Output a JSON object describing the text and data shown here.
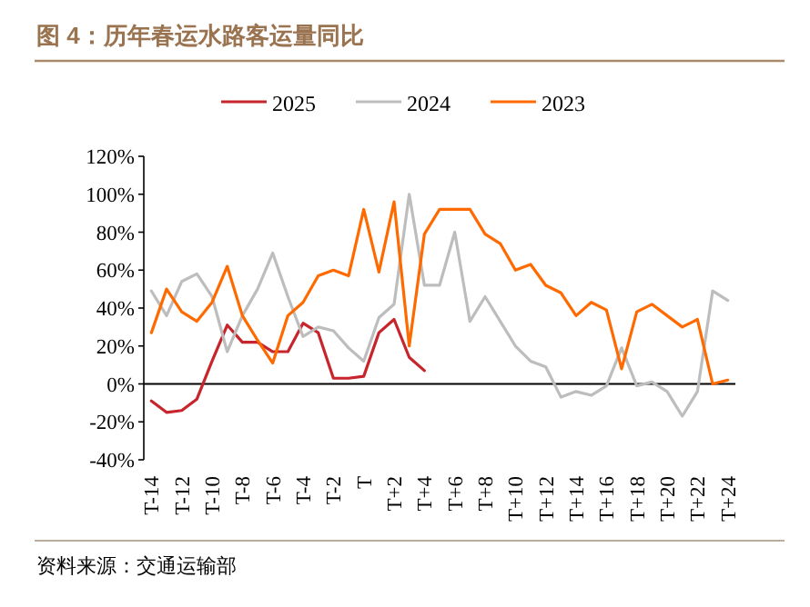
{
  "chart_data": {
    "type": "line",
    "title": "图 4：历年春运水路客运量同比",
    "categories": [
      "T-14",
      null,
      "T-12",
      null,
      "T-10",
      null,
      "T-8",
      null,
      "T-6",
      null,
      "T-4",
      null,
      "T-2",
      null,
      "T",
      null,
      "T+2",
      null,
      "T+4",
      null,
      "T+6",
      null,
      "T+8",
      null,
      "T+10",
      null,
      "T+12",
      null,
      "T+14",
      null,
      "T+16",
      null,
      "T+18",
      null,
      "T+20",
      null,
      "T+22",
      null,
      "T+24"
    ],
    "series": [
      {
        "name": "2025",
        "color": "#c8242c",
        "values": [
          -9,
          -15,
          -14,
          -8,
          12,
          31,
          22,
          22,
          17,
          17,
          32,
          27,
          3,
          3,
          4,
          27,
          34,
          14,
          7,
          null,
          null,
          null,
          null,
          null,
          null,
          null,
          null,
          null,
          null,
          null,
          null,
          null,
          null,
          null,
          null,
          null,
          null,
          null,
          null
        ]
      },
      {
        "name": "2024",
        "color": "#bdbdbd",
        "values": [
          49,
          36,
          54,
          58,
          46,
          17,
          36,
          50,
          69,
          46,
          25,
          30,
          28,
          19,
          12,
          35,
          42,
          100,
          52,
          52,
          80,
          33,
          46,
          33,
          20,
          12,
          9,
          -7,
          -4,
          -6,
          -1,
          19,
          -1,
          1,
          -4,
          -17,
          -4,
          49,
          44
        ]
      },
      {
        "name": "2023",
        "color": "#ff6a00",
        "values": [
          27,
          50,
          38,
          33,
          43,
          62,
          36,
          23,
          11,
          36,
          43,
          57,
          60,
          57,
          92,
          59,
          96,
          20,
          79,
          92,
          92,
          92,
          79,
          74,
          60,
          63,
          52,
          48,
          36,
          43,
          39,
          8,
          38,
          42,
          36,
          30,
          34,
          0,
          2
        ]
      }
    ],
    "ylim": [
      -40,
      120
    ],
    "yticks": [
      {
        "value": -40,
        "label": "-40%"
      },
      {
        "value": -20,
        "label": "-20%"
      },
      {
        "value": 0,
        "label": "0%"
      },
      {
        "value": 20,
        "label": "20%"
      },
      {
        "value": 40,
        "label": "40%"
      },
      {
        "value": 60,
        "label": "60%"
      },
      {
        "value": 80,
        "label": "80%"
      },
      {
        "value": 100,
        "label": "100%"
      },
      {
        "value": 120,
        "label": "120%"
      }
    ],
    "ref_lines": [
      {
        "axis": "y",
        "value": 0,
        "color": "#000000"
      }
    ],
    "legend": "top",
    "grid": false,
    "marker": "none",
    "line_style": "solid",
    "annotations": [
      "资料来源：交通运输部"
    ]
  }
}
